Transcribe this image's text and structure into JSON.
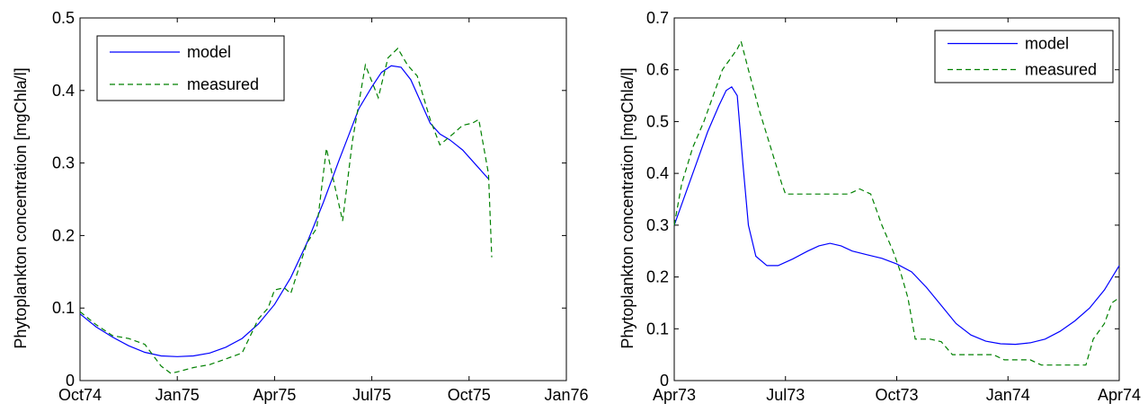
{
  "chart_data": [
    {
      "type": "line",
      "ylabel": "Phytoplankton concentration [mgChla/l]",
      "xlabel": "",
      "xlim": [
        0,
        15
      ],
      "ylim": [
        0,
        0.5
      ],
      "x_ticks": [
        {
          "x": 0,
          "label": "Oct74"
        },
        {
          "x": 3,
          "label": "Jan75"
        },
        {
          "x": 6,
          "label": "Apr75"
        },
        {
          "x": 9,
          "label": "Jul75"
        },
        {
          "x": 12,
          "label": "Oct75"
        },
        {
          "x": 15,
          "label": "Jan76"
        }
      ],
      "y_ticks": [
        {
          "y": 0,
          "label": "0"
        },
        {
          "y": 0.1,
          "label": "0.1"
        },
        {
          "y": 0.2,
          "label": "0.2"
        },
        {
          "y": 0.3,
          "label": "0.3"
        },
        {
          "y": 0.4,
          "label": "0.4"
        },
        {
          "y": 0.5,
          "label": "0.5"
        }
      ],
      "legend": "top-left",
      "series": [
        {
          "name": "model",
          "color": "#0000ff",
          "dash": "solid",
          "points": [
            [
              0,
              0.092
            ],
            [
              0.5,
              0.074
            ],
            [
              1,
              0.06
            ],
            [
              1.5,
              0.048
            ],
            [
              2,
              0.039
            ],
            [
              2.5,
              0.034
            ],
            [
              3,
              0.033
            ],
            [
              3.5,
              0.034
            ],
            [
              4,
              0.038
            ],
            [
              4.5,
              0.046
            ],
            [
              5,
              0.058
            ],
            [
              5.5,
              0.078
            ],
            [
              6,
              0.105
            ],
            [
              6.5,
              0.142
            ],
            [
              7,
              0.19
            ],
            [
              7.5,
              0.245
            ],
            [
              8,
              0.305
            ],
            [
              8.3,
              0.34
            ],
            [
              8.6,
              0.375
            ],
            [
              9,
              0.405
            ],
            [
              9.3,
              0.425
            ],
            [
              9.6,
              0.434
            ],
            [
              9.9,
              0.432
            ],
            [
              10.2,
              0.415
            ],
            [
              10.5,
              0.385
            ],
            [
              10.8,
              0.355
            ],
            [
              11.1,
              0.34
            ],
            [
              11.4,
              0.332
            ],
            [
              11.8,
              0.318
            ],
            [
              12.2,
              0.298
            ],
            [
              12.6,
              0.278
            ]
          ]
        },
        {
          "name": "measured",
          "color": "#008000",
          "dash": "dashed",
          "points": [
            [
              0,
              0.095
            ],
            [
              0.5,
              0.077
            ],
            [
              1,
              0.062
            ],
            [
              1.5,
              0.058
            ],
            [
              2,
              0.05
            ],
            [
              2.5,
              0.02
            ],
            [
              2.8,
              0.01
            ],
            [
              3,
              0.012
            ],
            [
              3.5,
              0.018
            ],
            [
              4,
              0.022
            ],
            [
              4.5,
              0.03
            ],
            [
              5,
              0.038
            ],
            [
              5.5,
              0.085
            ],
            [
              5.8,
              0.1
            ],
            [
              6,
              0.125
            ],
            [
              6.3,
              0.128
            ],
            [
              6.5,
              0.12
            ],
            [
              7,
              0.19
            ],
            [
              7.3,
              0.21
            ],
            [
              7.6,
              0.32
            ],
            [
              7.9,
              0.26
            ],
            [
              8.1,
              0.22
            ],
            [
              8.4,
              0.33
            ],
            [
              8.8,
              0.435
            ],
            [
              9.2,
              0.39
            ],
            [
              9.5,
              0.445
            ],
            [
              9.8,
              0.458
            ],
            [
              10.1,
              0.435
            ],
            [
              10.4,
              0.42
            ],
            [
              10.8,
              0.36
            ],
            [
              11.1,
              0.325
            ],
            [
              11.5,
              0.34
            ],
            [
              11.8,
              0.352
            ],
            [
              12.1,
              0.355
            ],
            [
              12.3,
              0.36
            ],
            [
              12.5,
              0.31
            ],
            [
              12.6,
              0.285
            ],
            [
              12.7,
              0.17
            ]
          ]
        }
      ]
    },
    {
      "type": "line",
      "ylabel": "Phytoplankton concentration [mgChla/l]",
      "xlabel": "",
      "xlim": [
        0,
        12
      ],
      "ylim": [
        0,
        0.7
      ],
      "x_ticks": [
        {
          "x": 0,
          "label": "Apr73"
        },
        {
          "x": 3,
          "label": "Jul73"
        },
        {
          "x": 6,
          "label": "Oct73"
        },
        {
          "x": 9,
          "label": "Jan74"
        },
        {
          "x": 12,
          "label": "Apr74"
        }
      ],
      "y_ticks": [
        {
          "y": 0,
          "label": "0"
        },
        {
          "y": 0.1,
          "label": "0.1"
        },
        {
          "y": 0.2,
          "label": "0.2"
        },
        {
          "y": 0.3,
          "label": "0.3"
        },
        {
          "y": 0.4,
          "label": "0.4"
        },
        {
          "y": 0.5,
          "label": "0.5"
        },
        {
          "y": 0.6,
          "label": "0.6"
        },
        {
          "y": 0.7,
          "label": "0.7"
        }
      ],
      "legend": "top-right",
      "series": [
        {
          "name": "model",
          "color": "#0000ff",
          "dash": "solid",
          "points": [
            [
              0,
              0.3
            ],
            [
              0.3,
              0.36
            ],
            [
              0.6,
              0.42
            ],
            [
              0.9,
              0.48
            ],
            [
              1.2,
              0.53
            ],
            [
              1.4,
              0.56
            ],
            [
              1.55,
              0.567
            ],
            [
              1.7,
              0.55
            ],
            [
              1.85,
              0.42
            ],
            [
              2.0,
              0.3
            ],
            [
              2.2,
              0.24
            ],
            [
              2.5,
              0.222
            ],
            [
              2.8,
              0.222
            ],
            [
              3.2,
              0.235
            ],
            [
              3.6,
              0.25
            ],
            [
              3.9,
              0.26
            ],
            [
              4.2,
              0.265
            ],
            [
              4.5,
              0.26
            ],
            [
              4.8,
              0.25
            ],
            [
              5.2,
              0.243
            ],
            [
              5.6,
              0.236
            ],
            [
              6,
              0.225
            ],
            [
              6.4,
              0.21
            ],
            [
              6.8,
              0.18
            ],
            [
              7.2,
              0.145
            ],
            [
              7.6,
              0.11
            ],
            [
              8,
              0.088
            ],
            [
              8.4,
              0.076
            ],
            [
              8.8,
              0.071
            ],
            [
              9.2,
              0.07
            ],
            [
              9.6,
              0.073
            ],
            [
              10,
              0.08
            ],
            [
              10.4,
              0.095
            ],
            [
              10.8,
              0.115
            ],
            [
              11.2,
              0.14
            ],
            [
              11.6,
              0.175
            ],
            [
              12,
              0.222
            ]
          ]
        },
        {
          "name": "measured",
          "color": "#008000",
          "dash": "dashed",
          "points": [
            [
              0,
              0.3
            ],
            [
              0.2,
              0.38
            ],
            [
              0.5,
              0.45
            ],
            [
              0.8,
              0.5
            ],
            [
              1.1,
              0.56
            ],
            [
              1.3,
              0.6
            ],
            [
              1.5,
              0.62
            ],
            [
              1.7,
              0.64
            ],
            [
              1.8,
              0.655
            ],
            [
              2,
              0.6
            ],
            [
              2.3,
              0.52
            ],
            [
              2.6,
              0.45
            ],
            [
              2.9,
              0.38
            ],
            [
              3.0,
              0.36
            ],
            [
              3.3,
              0.36
            ],
            [
              3.7,
              0.36
            ],
            [
              4.2,
              0.36
            ],
            [
              4.7,
              0.36
            ],
            [
              5.0,
              0.37
            ],
            [
              5.3,
              0.36
            ],
            [
              5.6,
              0.3
            ],
            [
              5.9,
              0.25
            ],
            [
              6.1,
              0.21
            ],
            [
              6.3,
              0.16
            ],
            [
              6.5,
              0.08
            ],
            [
              6.9,
              0.08
            ],
            [
              7.2,
              0.075
            ],
            [
              7.5,
              0.05
            ],
            [
              8.2,
              0.05
            ],
            [
              8.6,
              0.05
            ],
            [
              8.9,
              0.04
            ],
            [
              9.3,
              0.04
            ],
            [
              9.6,
              0.04
            ],
            [
              9.9,
              0.03
            ],
            [
              10.4,
              0.03
            ],
            [
              10.8,
              0.03
            ],
            [
              11.1,
              0.03
            ],
            [
              11.3,
              0.08
            ],
            [
              11.6,
              0.11
            ],
            [
              11.8,
              0.15
            ],
            [
              12,
              0.16
            ]
          ]
        }
      ]
    }
  ]
}
